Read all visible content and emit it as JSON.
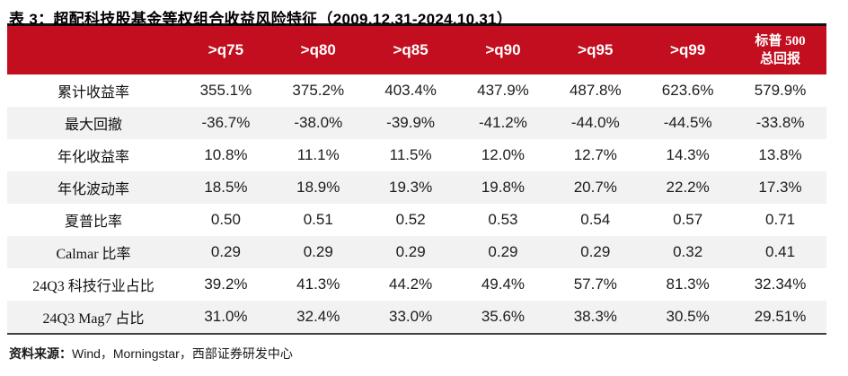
{
  "title": "表 3：超配科技股基金等权组合收益风险特征（2009.12.31-2024.10.31）",
  "table": {
    "header": {
      "columns": [
        ">q75",
        ">q80",
        ">q85",
        ">q90",
        ">q95",
        ">q99"
      ],
      "sp500_line1": "标普 500",
      "sp500_line2": "总回报"
    },
    "rows": [
      {
        "label": "累计收益率",
        "values": [
          "355.1%",
          "375.2%",
          "403.4%",
          "437.9%",
          "487.8%",
          "623.6%",
          "579.9%"
        ]
      },
      {
        "label": "最大回撤",
        "values": [
          "-36.7%",
          "-38.0%",
          "-39.9%",
          "-41.2%",
          "-44.0%",
          "-44.5%",
          "-33.8%"
        ]
      },
      {
        "label": "年化收益率",
        "values": [
          "10.8%",
          "11.1%",
          "11.5%",
          "12.0%",
          "12.7%",
          "14.3%",
          "13.8%"
        ]
      },
      {
        "label": "年化波动率",
        "values": [
          "18.5%",
          "18.9%",
          "19.3%",
          "19.8%",
          "20.7%",
          "22.2%",
          "17.3%"
        ]
      },
      {
        "label": "夏普比率",
        "values": [
          "0.50",
          "0.51",
          "0.52",
          "0.53",
          "0.54",
          "0.57",
          "0.71"
        ]
      },
      {
        "label": "Calmar 比率",
        "values": [
          "0.29",
          "0.29",
          "0.29",
          "0.29",
          "0.29",
          "0.32",
          "0.41"
        ]
      },
      {
        "label": "24Q3 科技行业占比",
        "values": [
          "39.2%",
          "41.3%",
          "44.2%",
          "49.4%",
          "57.7%",
          "81.3%",
          "32.34%"
        ]
      },
      {
        "label": "24Q3 Mag7 占比",
        "values": [
          "31.0%",
          "32.4%",
          "33.0%",
          "35.6%",
          "38.3%",
          "30.5%",
          "29.51%"
        ]
      }
    ]
  },
  "footer": {
    "source_label": "资料来源：",
    "source_text": "Wind，Morningstar，西部证券研发中心"
  },
  "colors": {
    "header_red": "#c20e1f",
    "row_alt_gray": "#f2f2f2",
    "top_rule": "#111111",
    "bottom_rule": "#404040"
  }
}
